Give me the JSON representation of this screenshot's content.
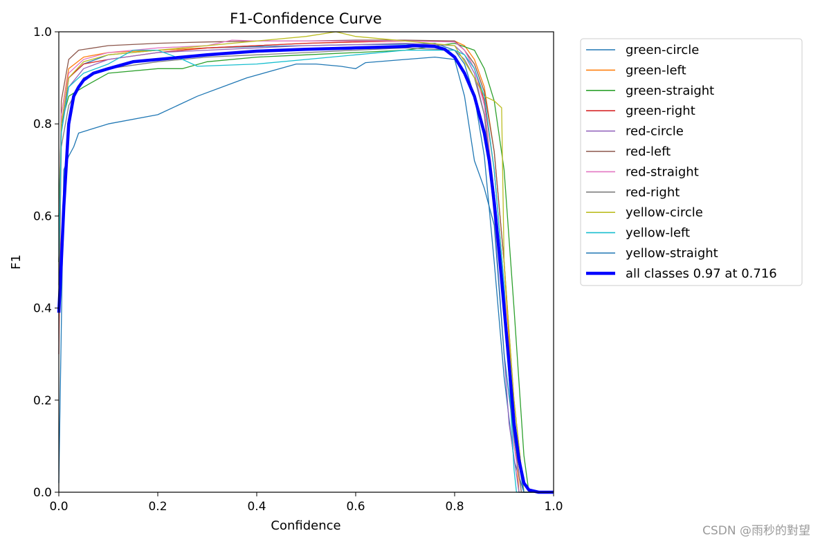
{
  "chart_data": {
    "type": "line",
    "title": "F1-Confidence Curve",
    "xlabel": "Confidence",
    "ylabel": "F1",
    "xlim": [
      0,
      1
    ],
    "ylim": [
      0,
      1
    ],
    "xticks": [
      "0.0",
      "0.2",
      "0.4",
      "0.6",
      "0.8",
      "1.0"
    ],
    "yticks": [
      "0.0",
      "0.2",
      "0.4",
      "0.6",
      "0.8",
      "1.0"
    ],
    "grid": false,
    "legend_position": "outside-upper-right",
    "series": [
      {
        "name": "green-circle",
        "color": "#1f77b4",
        "x": [
          0,
          0.005,
          0.02,
          0.05,
          0.1,
          0.15,
          0.2,
          0.3,
          0.4,
          0.5,
          0.6,
          0.7,
          0.76,
          0.8,
          0.82,
          0.84,
          0.86,
          0.88,
          0.9,
          0.92,
          0.94,
          0.96,
          1.0
        ],
        "y": [
          0.6,
          0.78,
          0.9,
          0.93,
          0.95,
          0.955,
          0.96,
          0.965,
          0.968,
          0.97,
          0.972,
          0.973,
          0.975,
          0.96,
          0.93,
          0.86,
          0.73,
          0.5,
          0.25,
          0.07,
          0.0,
          0.0,
          0.0
        ]
      },
      {
        "name": "green-left",
        "color": "#ff7f0e",
        "x": [
          0,
          0.005,
          0.02,
          0.05,
          0.1,
          0.2,
          0.3,
          0.4,
          0.5,
          0.6,
          0.7,
          0.8,
          0.82,
          0.84,
          0.86,
          0.88,
          0.9,
          0.92,
          0.93,
          0.95,
          1.0
        ],
        "y": [
          0.5,
          0.82,
          0.92,
          0.945,
          0.955,
          0.96,
          0.965,
          0.97,
          0.975,
          0.978,
          0.98,
          0.98,
          0.97,
          0.94,
          0.88,
          0.74,
          0.5,
          0.15,
          0.0,
          0.0,
          0.0
        ]
      },
      {
        "name": "green-straight",
        "color": "#2ca02c",
        "x": [
          0,
          0.005,
          0.02,
          0.05,
          0.1,
          0.2,
          0.25,
          0.3,
          0.4,
          0.5,
          0.6,
          0.7,
          0.8,
          0.84,
          0.86,
          0.88,
          0.9,
          0.92,
          0.94,
          0.95,
          1.0
        ],
        "y": [
          0.6,
          0.8,
          0.86,
          0.88,
          0.91,
          0.92,
          0.92,
          0.935,
          0.945,
          0.95,
          0.955,
          0.96,
          0.975,
          0.96,
          0.92,
          0.85,
          0.7,
          0.4,
          0.08,
          0.0,
          0.0
        ]
      },
      {
        "name": "green-right",
        "color": "#d62728",
        "x": [
          0,
          0.005,
          0.02,
          0.05,
          0.1,
          0.2,
          0.3,
          0.4,
          0.5,
          0.6,
          0.7,
          0.8,
          0.82,
          0.84,
          0.86,
          0.88,
          0.9,
          0.92,
          0.935,
          1.0
        ],
        "y": [
          0.3,
          0.8,
          0.9,
          0.93,
          0.94,
          0.955,
          0.965,
          0.97,
          0.975,
          0.978,
          0.98,
          0.98,
          0.96,
          0.92,
          0.85,
          0.7,
          0.45,
          0.12,
          0.0,
          0.0
        ]
      },
      {
        "name": "red-circle",
        "color": "#9467bd",
        "x": [
          0,
          0.005,
          0.02,
          0.05,
          0.1,
          0.2,
          0.3,
          0.4,
          0.5,
          0.6,
          0.7,
          0.8,
          0.82,
          0.84,
          0.86,
          0.88,
          0.9,
          0.91,
          0.93,
          1.0
        ],
        "y": [
          0.45,
          0.8,
          0.88,
          0.92,
          0.94,
          0.955,
          0.96,
          0.965,
          0.97,
          0.972,
          0.975,
          0.97,
          0.95,
          0.91,
          0.82,
          0.6,
          0.3,
          0.15,
          0.0,
          0.0
        ]
      },
      {
        "name": "red-left",
        "color": "#8c564b",
        "x": [
          0,
          0.005,
          0.02,
          0.04,
          0.1,
          0.2,
          0.3,
          0.4,
          0.5,
          0.6,
          0.7,
          0.8,
          0.82,
          0.84,
          0.86,
          0.88,
          0.9,
          0.92,
          0.94,
          1.0
        ],
        "y": [
          0.5,
          0.85,
          0.94,
          0.96,
          0.97,
          0.975,
          0.978,
          0.98,
          0.98,
          0.982,
          0.982,
          0.98,
          0.96,
          0.93,
          0.87,
          0.74,
          0.5,
          0.2,
          0.0,
          0.0
        ]
      },
      {
        "name": "red-straight",
        "color": "#e377c2",
        "x": [
          0,
          0.005,
          0.02,
          0.05,
          0.1,
          0.2,
          0.3,
          0.35,
          0.4,
          0.5,
          0.6,
          0.7,
          0.8,
          0.82,
          0.84,
          0.86,
          0.88,
          0.9,
          0.92,
          0.935,
          1.0
        ],
        "y": [
          0.5,
          0.82,
          0.91,
          0.94,
          0.955,
          0.965,
          0.97,
          0.982,
          0.98,
          0.98,
          0.98,
          0.98,
          0.978,
          0.96,
          0.92,
          0.84,
          0.65,
          0.4,
          0.1,
          0.0,
          0.0
        ]
      },
      {
        "name": "red-right",
        "color": "#7f7f7f",
        "x": [
          0,
          0.005,
          0.02,
          0.05,
          0.1,
          0.2,
          0.3,
          0.4,
          0.5,
          0.6,
          0.7,
          0.8,
          0.82,
          0.84,
          0.86,
          0.88,
          0.9,
          0.92,
          0.935,
          1.0
        ],
        "y": [
          0.4,
          0.75,
          0.84,
          0.9,
          0.92,
          0.935,
          0.945,
          0.95,
          0.955,
          0.96,
          0.965,
          0.96,
          0.94,
          0.9,
          0.82,
          0.65,
          0.4,
          0.12,
          0.0,
          0.0
        ]
      },
      {
        "name": "yellow-circle",
        "color": "#bcbd22",
        "x": [
          0,
          0.005,
          0.02,
          0.05,
          0.1,
          0.2,
          0.3,
          0.4,
          0.5,
          0.56,
          0.6,
          0.7,
          0.8,
          0.84,
          0.86,
          0.88,
          0.895,
          0.9,
          0.92,
          0.94,
          1.0
        ],
        "y": [
          0.5,
          0.8,
          0.9,
          0.935,
          0.95,
          0.96,
          0.97,
          0.98,
          0.99,
          1.0,
          0.99,
          0.98,
          0.97,
          0.9,
          0.86,
          0.85,
          0.835,
          0.5,
          0.2,
          0.0,
          0.0
        ]
      },
      {
        "name": "yellow-left",
        "color": "#17becf",
        "x": [
          0,
          0.005,
          0.02,
          0.05,
          0.1,
          0.15,
          0.2,
          0.25,
          0.28,
          0.4,
          0.5,
          0.6,
          0.7,
          0.76,
          0.8,
          0.82,
          0.84,
          0.86,
          0.88,
          0.9,
          0.91,
          0.92,
          0.925,
          1.0
        ],
        "y": [
          0.5,
          0.78,
          0.88,
          0.91,
          0.93,
          0.96,
          0.96,
          0.94,
          0.925,
          0.93,
          0.94,
          0.95,
          0.96,
          0.96,
          0.96,
          0.95,
          0.92,
          0.86,
          0.7,
          0.45,
          0.25,
          0.05,
          0.0,
          0.0
        ]
      },
      {
        "name": "yellow-straight",
        "color": "#1f77b4",
        "x": [
          0,
          0.01,
          0.02,
          0.03,
          0.04,
          0.1,
          0.2,
          0.28,
          0.38,
          0.48,
          0.52,
          0.57,
          0.6,
          0.62,
          0.7,
          0.76,
          0.8,
          0.82,
          0.84,
          0.86,
          0.88,
          0.9,
          0.92,
          0.94,
          1.0
        ],
        "y": [
          0.02,
          0.7,
          0.73,
          0.75,
          0.78,
          0.8,
          0.82,
          0.86,
          0.9,
          0.93,
          0.93,
          0.925,
          0.92,
          0.933,
          0.94,
          0.945,
          0.94,
          0.86,
          0.72,
          0.66,
          0.58,
          0.3,
          0.12,
          0.0,
          0.0
        ]
      },
      {
        "name": "all classes 0.97 at 0.716",
        "color": "#0000ff",
        "width": 4.5,
        "x": [
          0,
          0.005,
          0.01,
          0.02,
          0.03,
          0.04,
          0.05,
          0.07,
          0.1,
          0.15,
          0.2,
          0.3,
          0.4,
          0.5,
          0.6,
          0.7,
          0.716,
          0.76,
          0.78,
          0.8,
          0.82,
          0.84,
          0.86,
          0.87,
          0.88,
          0.89,
          0.9,
          0.91,
          0.92,
          0.93,
          0.94,
          0.95,
          0.97,
          1.0
        ],
        "y": [
          0.39,
          0.5,
          0.62,
          0.8,
          0.86,
          0.88,
          0.895,
          0.91,
          0.92,
          0.935,
          0.94,
          0.95,
          0.958,
          0.962,
          0.965,
          0.968,
          0.97,
          0.968,
          0.962,
          0.945,
          0.91,
          0.86,
          0.78,
          0.72,
          0.63,
          0.52,
          0.4,
          0.28,
          0.15,
          0.07,
          0.02,
          0.005,
          0.0,
          0.0
        ]
      }
    ]
  },
  "watermark": "CSDN @雨秒的對望"
}
